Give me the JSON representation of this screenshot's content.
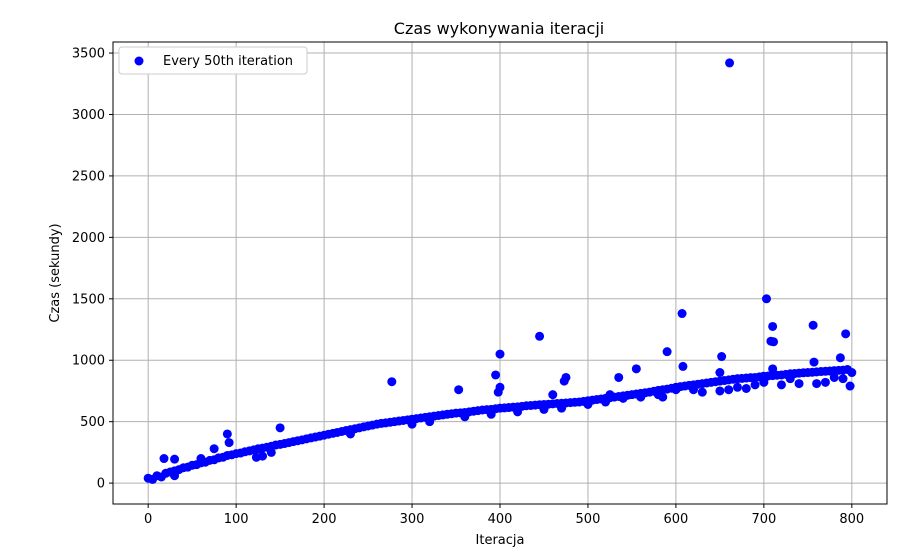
{
  "chart_data": {
    "type": "scatter",
    "title": "Czas wykonywania iteracji",
    "xlabel": "Iteracja",
    "ylabel": "Czas (sekundy)",
    "xlim": [
      -40,
      840
    ],
    "ylim": [
      -170,
      3590
    ],
    "xticks": [
      0,
      100,
      200,
      300,
      400,
      500,
      600,
      700,
      800
    ],
    "yticks": [
      0,
      500,
      1000,
      1500,
      2000,
      2500,
      3000,
      3500
    ],
    "grid": true,
    "legend_position": "top-left",
    "series": [
      {
        "name": "Every 50th iteration",
        "color": "#0000ff",
        "points": [
          [
            0,
            40
          ],
          [
            10,
            60
          ],
          [
            20,
            80
          ],
          [
            30,
            100
          ],
          [
            40,
            125
          ],
          [
            50,
            145
          ],
          [
            60,
            165
          ],
          [
            70,
            185
          ],
          [
            80,
            205
          ],
          [
            90,
            225
          ],
          [
            100,
            240
          ],
          [
            110,
            255
          ],
          [
            120,
            270
          ],
          [
            130,
            285
          ],
          [
            140,
            300
          ],
          [
            150,
            315
          ],
          [
            160,
            330
          ],
          [
            170,
            345
          ],
          [
            180,
            360
          ],
          [
            190,
            375
          ],
          [
            200,
            390
          ],
          [
            210,
            405
          ],
          [
            220,
            420
          ],
          [
            230,
            435
          ],
          [
            240,
            450
          ],
          [
            250,
            465
          ],
          [
            260,
            480
          ],
          [
            270,
            490
          ],
          [
            280,
            500
          ],
          [
            290,
            510
          ],
          [
            300,
            520
          ],
          [
            310,
            530
          ],
          [
            320,
            540
          ],
          [
            330,
            550
          ],
          [
            340,
            560
          ],
          [
            350,
            570
          ],
          [
            360,
            575
          ],
          [
            370,
            585
          ],
          [
            380,
            595
          ],
          [
            390,
            600
          ],
          [
            400,
            610
          ],
          [
            410,
            615
          ],
          [
            420,
            620
          ],
          [
            430,
            630
          ],
          [
            440,
            635
          ],
          [
            450,
            640
          ],
          [
            460,
            645
          ],
          [
            470,
            650
          ],
          [
            480,
            655
          ],
          [
            490,
            660
          ],
          [
            500,
            670
          ],
          [
            510,
            680
          ],
          [
            520,
            690
          ],
          [
            530,
            700
          ],
          [
            540,
            710
          ],
          [
            550,
            720
          ],
          [
            560,
            730
          ],
          [
            570,
            740
          ],
          [
            580,
            755
          ],
          [
            590,
            765
          ],
          [
            600,
            780
          ],
          [
            610,
            790
          ],
          [
            620,
            800
          ],
          [
            630,
            810
          ],
          [
            640,
            820
          ],
          [
            650,
            830
          ],
          [
            660,
            840
          ],
          [
            670,
            850
          ],
          [
            680,
            855
          ],
          [
            690,
            860
          ],
          [
            700,
            870
          ],
          [
            710,
            875
          ],
          [
            720,
            880
          ],
          [
            730,
            890
          ],
          [
            740,
            895
          ],
          [
            750,
            900
          ],
          [
            760,
            905
          ],
          [
            770,
            910
          ],
          [
            780,
            915
          ],
          [
            790,
            920
          ],
          [
            800,
            900
          ],
          [
            5,
            30
          ],
          [
            15,
            50
          ],
          [
            25,
            90
          ],
          [
            35,
            110
          ],
          [
            45,
            130
          ],
          [
            55,
            150
          ],
          [
            65,
            170
          ],
          [
            75,
            190
          ],
          [
            85,
            210
          ],
          [
            95,
            230
          ],
          [
            105,
            245
          ],
          [
            115,
            262
          ],
          [
            125,
            280
          ],
          [
            135,
            292
          ],
          [
            145,
            310
          ],
          [
            155,
            322
          ],
          [
            165,
            338
          ],
          [
            175,
            352
          ],
          [
            185,
            368
          ],
          [
            195,
            382
          ],
          [
            205,
            398
          ],
          [
            215,
            412
          ],
          [
            225,
            428
          ],
          [
            235,
            442
          ],
          [
            245,
            458
          ],
          [
            255,
            472
          ],
          [
            265,
            486
          ],
          [
            275,
            495
          ],
          [
            285,
            505
          ],
          [
            295,
            515
          ],
          [
            305,
            525
          ],
          [
            315,
            535
          ],
          [
            325,
            545
          ],
          [
            335,
            555
          ],
          [
            345,
            565
          ],
          [
            355,
            572
          ],
          [
            365,
            580
          ],
          [
            375,
            590
          ],
          [
            385,
            598
          ],
          [
            395,
            605
          ],
          [
            405,
            612
          ],
          [
            415,
            618
          ],
          [
            425,
            625
          ],
          [
            435,
            632
          ],
          [
            445,
            638
          ],
          [
            455,
            642
          ],
          [
            465,
            648
          ],
          [
            475,
            652
          ],
          [
            485,
            658
          ],
          [
            495,
            665
          ],
          [
            505,
            675
          ],
          [
            515,
            685
          ],
          [
            525,
            695
          ],
          [
            535,
            705
          ],
          [
            545,
            715
          ],
          [
            555,
            725
          ],
          [
            565,
            735
          ],
          [
            575,
            748
          ],
          [
            585,
            760
          ],
          [
            595,
            772
          ],
          [
            605,
            785
          ],
          [
            615,
            795
          ],
          [
            625,
            805
          ],
          [
            635,
            815
          ],
          [
            645,
            825
          ],
          [
            655,
            835
          ],
          [
            665,
            845
          ],
          [
            675,
            852
          ],
          [
            685,
            858
          ],
          [
            695,
            865
          ],
          [
            705,
            872
          ],
          [
            715,
            878
          ],
          [
            725,
            885
          ],
          [
            735,
            892
          ],
          [
            745,
            898
          ],
          [
            755,
            902
          ],
          [
            765,
            908
          ],
          [
            775,
            912
          ],
          [
            785,
            918
          ],
          [
            795,
            925
          ],
          [
            18,
            200
          ],
          [
            30,
            195
          ],
          [
            90,
            400
          ],
          [
            92,
            330
          ],
          [
            150,
            450
          ],
          [
            123,
            210
          ],
          [
            277,
            825
          ],
          [
            353,
            760
          ],
          [
            395,
            880
          ],
          [
            400,
            1050
          ],
          [
            400,
            780
          ],
          [
            398,
            740
          ],
          [
            445,
            1195
          ],
          [
            475,
            860
          ],
          [
            473,
            830
          ],
          [
            555,
            930
          ],
          [
            535,
            860
          ],
          [
            590,
            1070
          ],
          [
            607,
            1380
          ],
          [
            608,
            950
          ],
          [
            652,
            1030
          ],
          [
            661,
            3420
          ],
          [
            703,
            1500
          ],
          [
            710,
            1275
          ],
          [
            708,
            1155
          ],
          [
            711,
            1150
          ],
          [
            756,
            1285
          ],
          [
            793,
            1215
          ],
          [
            787,
            1020
          ],
          [
            757,
            985
          ],
          [
            30,
            60
          ],
          [
            60,
            200
          ],
          [
            75,
            280
          ],
          [
            130,
            220
          ],
          [
            140,
            250
          ],
          [
            230,
            400
          ],
          [
            320,
            500
          ],
          [
            360,
            540
          ],
          [
            390,
            560
          ],
          [
            420,
            580
          ],
          [
            450,
            600
          ],
          [
            470,
            610
          ],
          [
            500,
            640
          ],
          [
            520,
            660
          ],
          [
            540,
            690
          ],
          [
            560,
            700
          ],
          [
            580,
            720
          ],
          [
            600,
            760
          ],
          [
            620,
            760
          ],
          [
            630,
            740
          ],
          [
            650,
            750
          ],
          [
            660,
            760
          ],
          [
            670,
            780
          ],
          [
            680,
            770
          ],
          [
            690,
            800
          ],
          [
            700,
            820
          ],
          [
            720,
            800
          ],
          [
            740,
            810
          ],
          [
            760,
            810
          ],
          [
            770,
            820
          ],
          [
            780,
            860
          ],
          [
            790,
            850
          ],
          [
            798,
            790
          ],
          [
            730,
            850
          ],
          [
            710,
            930
          ],
          [
            650,
            900
          ],
          [
            585,
            700
          ],
          [
            525,
            720
          ],
          [
            460,
            720
          ],
          [
            300,
            480
          ]
        ]
      }
    ]
  }
}
